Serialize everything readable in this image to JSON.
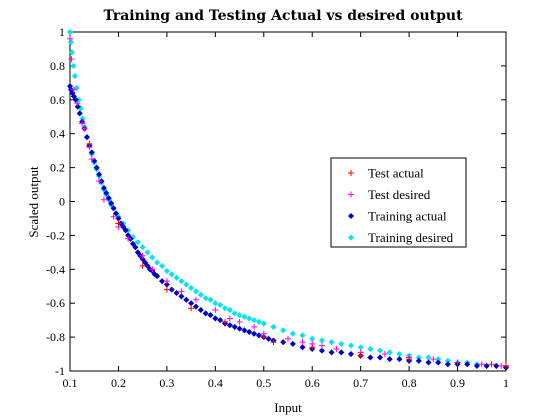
{
  "chart_data": {
    "type": "scatter",
    "title": "Training and Testing Actual vs desired output",
    "xlabel": "Input",
    "ylabel": "Scaled output",
    "xlim": [
      0.1,
      1
    ],
    "ylim": [
      -1,
      1
    ],
    "xticks": [
      0.1,
      0.2,
      0.3,
      0.4,
      0.5,
      0.6,
      0.7,
      0.8,
      0.9,
      1
    ],
    "xtick_labels": [
      "0.1",
      "0.2",
      "0.3",
      "0.4",
      "0.5",
      "0.6",
      "0.7",
      "0.8",
      "0.9",
      "1"
    ],
    "yticks": [
      -1,
      -0.8,
      -0.6,
      -0.4,
      -0.2,
      0,
      0.2,
      0.4,
      0.6,
      0.8,
      1
    ],
    "ytick_labels": [
      "-1",
      "-0.8",
      "-0.6",
      "-0.4",
      "-0.2",
      "0",
      "0.2",
      "0.4",
      "0.6",
      "0.8",
      "1"
    ],
    "grid": false,
    "legend_position": "right",
    "series": [
      {
        "name": "Test actual",
        "color": "#ff0000",
        "marker": "plus",
        "points": [
          [
            0.14,
            0.34
          ],
          [
            0.2,
            -0.13
          ],
          [
            0.25,
            -0.38
          ],
          [
            0.3,
            -0.52
          ],
          [
            0.35,
            -0.63
          ],
          [
            0.42,
            -0.71
          ],
          [
            0.5,
            -0.8
          ],
          [
            0.52,
            -0.83
          ],
          [
            0.6,
            -0.86
          ],
          [
            0.7,
            -0.91
          ],
          [
            0.8,
            -0.93
          ],
          [
            0.9,
            -0.95
          ],
          [
            0.97,
            -0.96
          ],
          [
            1.0,
            -0.97
          ]
        ]
      },
      {
        "name": "Test desired",
        "color": "#ff00ff",
        "marker": "plus",
        "points": [
          [
            0.1,
            0.96
          ],
          [
            0.103,
            0.84
          ],
          [
            0.108,
            0.66
          ],
          [
            0.115,
            0.58
          ],
          [
            0.125,
            0.46
          ],
          [
            0.13,
            0.43
          ],
          [
            0.14,
            0.32
          ],
          [
            0.145,
            0.25
          ],
          [
            0.16,
            0.12
          ],
          [
            0.17,
            0.01
          ],
          [
            0.19,
            -0.09
          ],
          [
            0.2,
            -0.15
          ],
          [
            0.22,
            -0.22
          ],
          [
            0.25,
            -0.32
          ],
          [
            0.27,
            -0.4
          ],
          [
            0.3,
            -0.47
          ],
          [
            0.33,
            -0.53
          ],
          [
            0.36,
            -0.58
          ],
          [
            0.4,
            -0.64
          ],
          [
            0.43,
            -0.69
          ],
          [
            0.45,
            -0.71
          ],
          [
            0.48,
            -0.74
          ],
          [
            0.5,
            -0.78
          ],
          [
            0.55,
            -0.81
          ],
          [
            0.58,
            -0.83
          ],
          [
            0.6,
            -0.84
          ],
          [
            0.62,
            -0.85
          ],
          [
            0.65,
            -0.87
          ],
          [
            0.7,
            -0.89
          ],
          [
            0.75,
            -0.9
          ],
          [
            0.8,
            -0.92
          ],
          [
            0.85,
            -0.93
          ],
          [
            0.9,
            -0.95
          ],
          [
            0.95,
            -0.96
          ],
          [
            0.99,
            -0.97
          ],
          [
            1.0,
            -0.97
          ]
        ]
      },
      {
        "name": "Training actual",
        "color": "#0000cc",
        "marker": "diamond",
        "points": [
          [
            0.1,
            0.68
          ],
          [
            0.102,
            0.66
          ],
          [
            0.105,
            0.64
          ],
          [
            0.108,
            0.62
          ],
          [
            0.112,
            0.6
          ],
          [
            0.116,
            0.56
          ],
          [
            0.12,
            0.52
          ],
          [
            0.125,
            0.47
          ],
          [
            0.13,
            0.43
          ],
          [
            0.135,
            0.38
          ],
          [
            0.14,
            0.33
          ],
          [
            0.145,
            0.29
          ],
          [
            0.15,
            0.24
          ],
          [
            0.155,
            0.2
          ],
          [
            0.16,
            0.16
          ],
          [
            0.165,
            0.12
          ],
          [
            0.17,
            0.08
          ],
          [
            0.175,
            0.05
          ],
          [
            0.18,
            0.02
          ],
          [
            0.185,
            -0.01
          ],
          [
            0.19,
            -0.04
          ],
          [
            0.195,
            -0.07
          ],
          [
            0.2,
            -0.1
          ],
          [
            0.205,
            -0.13
          ],
          [
            0.21,
            -0.15
          ],
          [
            0.215,
            -0.17
          ],
          [
            0.22,
            -0.2
          ],
          [
            0.225,
            -0.22
          ],
          [
            0.23,
            -0.25
          ],
          [
            0.235,
            -0.27
          ],
          [
            0.24,
            -0.3
          ],
          [
            0.245,
            -0.32
          ],
          [
            0.25,
            -0.34
          ],
          [
            0.255,
            -0.36
          ],
          [
            0.26,
            -0.38
          ],
          [
            0.265,
            -0.4
          ],
          [
            0.27,
            -0.41
          ],
          [
            0.275,
            -0.43
          ],
          [
            0.28,
            -0.44
          ],
          [
            0.29,
            -0.47
          ],
          [
            0.3,
            -0.49
          ],
          [
            0.31,
            -0.52
          ],
          [
            0.32,
            -0.54
          ],
          [
            0.33,
            -0.56
          ],
          [
            0.34,
            -0.58
          ],
          [
            0.35,
            -0.6
          ],
          [
            0.36,
            -0.62
          ],
          [
            0.37,
            -0.64
          ],
          [
            0.38,
            -0.66
          ],
          [
            0.39,
            -0.67
          ],
          [
            0.4,
            -0.69
          ],
          [
            0.41,
            -0.7
          ],
          [
            0.42,
            -0.72
          ],
          [
            0.43,
            -0.73
          ],
          [
            0.44,
            -0.74
          ],
          [
            0.45,
            -0.75
          ],
          [
            0.46,
            -0.76
          ],
          [
            0.47,
            -0.77
          ],
          [
            0.48,
            -0.78
          ],
          [
            0.49,
            -0.79
          ],
          [
            0.5,
            -0.8
          ],
          [
            0.51,
            -0.81
          ],
          [
            0.52,
            -0.82
          ],
          [
            0.54,
            -0.83
          ],
          [
            0.56,
            -0.84
          ],
          [
            0.58,
            -0.86
          ],
          [
            0.6,
            -0.87
          ],
          [
            0.62,
            -0.88
          ],
          [
            0.64,
            -0.89
          ],
          [
            0.66,
            -0.89
          ],
          [
            0.68,
            -0.9
          ],
          [
            0.7,
            -0.91
          ],
          [
            0.72,
            -0.92
          ],
          [
            0.74,
            -0.92
          ],
          [
            0.76,
            -0.93
          ],
          [
            0.78,
            -0.93
          ],
          [
            0.8,
            -0.94
          ],
          [
            0.82,
            -0.94
          ],
          [
            0.84,
            -0.95
          ],
          [
            0.86,
            -0.95
          ],
          [
            0.88,
            -0.96
          ],
          [
            0.9,
            -0.96
          ],
          [
            0.92,
            -0.96
          ],
          [
            0.94,
            -0.97
          ],
          [
            0.96,
            -0.97
          ],
          [
            0.98,
            -0.97
          ],
          [
            1.0,
            -0.98
          ]
        ]
      },
      {
        "name": "Training desired",
        "color": "#00e5ee",
        "marker": "diamond",
        "points": [
          [
            0.1,
            1.0
          ],
          [
            0.102,
            0.94
          ],
          [
            0.104,
            0.88
          ],
          [
            0.107,
            0.8
          ],
          [
            0.11,
            0.74
          ],
          [
            0.114,
            0.67
          ],
          [
            0.118,
            0.6
          ],
          [
            0.122,
            0.55
          ],
          [
            0.126,
            0.49
          ],
          [
            0.13,
            0.44
          ],
          [
            0.135,
            0.38
          ],
          [
            0.14,
            0.33
          ],
          [
            0.145,
            0.28
          ],
          [
            0.15,
            0.23
          ],
          [
            0.155,
            0.19
          ],
          [
            0.16,
            0.15
          ],
          [
            0.165,
            0.11
          ],
          [
            0.17,
            0.07
          ],
          [
            0.175,
            0.04
          ],
          [
            0.18,
            0.01
          ],
          [
            0.185,
            -0.02
          ],
          [
            0.19,
            -0.04
          ],
          [
            0.195,
            -0.07
          ],
          [
            0.2,
            -0.09
          ],
          [
            0.21,
            -0.13
          ],
          [
            0.22,
            -0.17
          ],
          [
            0.23,
            -0.21
          ],
          [
            0.24,
            -0.24
          ],
          [
            0.25,
            -0.27
          ],
          [
            0.26,
            -0.3
          ],
          [
            0.27,
            -0.33
          ],
          [
            0.28,
            -0.36
          ],
          [
            0.29,
            -0.38
          ],
          [
            0.3,
            -0.41
          ],
          [
            0.31,
            -0.43
          ],
          [
            0.32,
            -0.45
          ],
          [
            0.33,
            -0.47
          ],
          [
            0.34,
            -0.49
          ],
          [
            0.35,
            -0.51
          ],
          [
            0.36,
            -0.53
          ],
          [
            0.37,
            -0.55
          ],
          [
            0.38,
            -0.57
          ],
          [
            0.39,
            -0.58
          ],
          [
            0.4,
            -0.6
          ],
          [
            0.41,
            -0.61
          ],
          [
            0.42,
            -0.63
          ],
          [
            0.43,
            -0.64
          ],
          [
            0.44,
            -0.66
          ],
          [
            0.45,
            -0.67
          ],
          [
            0.46,
            -0.68
          ],
          [
            0.47,
            -0.69
          ],
          [
            0.48,
            -0.7
          ],
          [
            0.49,
            -0.71
          ],
          [
            0.5,
            -0.72
          ],
          [
            0.52,
            -0.74
          ],
          [
            0.54,
            -0.76
          ],
          [
            0.56,
            -0.78
          ],
          [
            0.58,
            -0.79
          ],
          [
            0.6,
            -0.81
          ],
          [
            0.62,
            -0.82
          ],
          [
            0.64,
            -0.83
          ],
          [
            0.66,
            -0.84
          ],
          [
            0.68,
            -0.85
          ],
          [
            0.7,
            -0.86
          ],
          [
            0.72,
            -0.87
          ],
          [
            0.74,
            -0.88
          ],
          [
            0.76,
            -0.89
          ],
          [
            0.78,
            -0.9
          ],
          [
            0.8,
            -0.91
          ],
          [
            0.82,
            -0.92
          ],
          [
            0.84,
            -0.92
          ],
          [
            0.86,
            -0.93
          ],
          [
            0.88,
            -0.94
          ],
          [
            0.9,
            -0.95
          ],
          [
            0.92,
            -0.95
          ],
          [
            0.94,
            -0.96
          ],
          [
            0.96,
            -0.97
          ],
          [
            0.98,
            -0.97
          ],
          [
            1.0,
            -0.98
          ]
        ]
      }
    ]
  }
}
